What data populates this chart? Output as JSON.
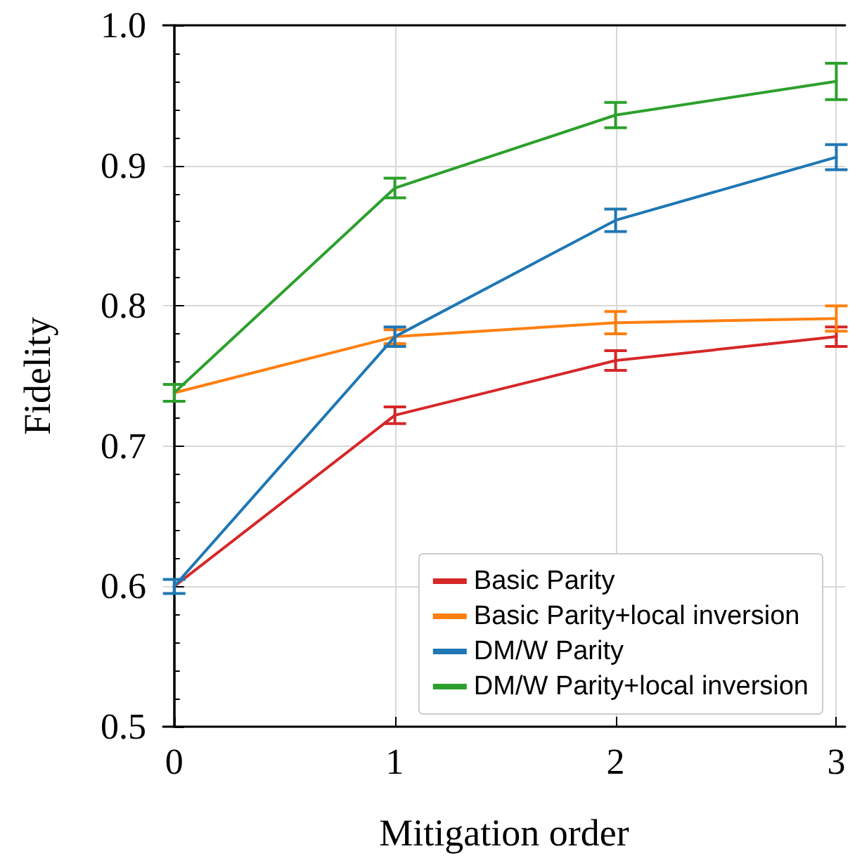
{
  "chart_data": {
    "type": "line",
    "xlabel": "Mitigation order",
    "ylabel": "Fidelity",
    "x": [
      0,
      1,
      2,
      3
    ],
    "series": [
      {
        "name": "Basic Parity",
        "color": "#d62728",
        "values": [
          0.6,
          0.722,
          0.761,
          0.778
        ],
        "errors": [
          null,
          0.006,
          0.007,
          0.007
        ]
      },
      {
        "name": "Basic Parity+local inversion",
        "color": "#ff7f0e",
        "values": [
          0.738,
          0.778,
          0.788,
          0.791
        ],
        "errors": [
          null,
          0.005,
          0.008,
          0.009
        ]
      },
      {
        "name": "DM/W Parity",
        "color": "#1f77b4",
        "values": [
          0.6,
          0.778,
          0.861,
          0.906
        ],
        "errors": [
          0.005,
          0.007,
          0.008,
          0.009
        ]
      },
      {
        "name": "DM/W Parity+local inversion",
        "color": "#2ca02c",
        "values": [
          0.738,
          0.884,
          0.936,
          0.96
        ],
        "errors": [
          0.006,
          0.007,
          0.009,
          0.013
        ]
      }
    ],
    "xlim": [
      -0.05,
      3.04
    ],
    "xticks": [
      0,
      1,
      2,
      3
    ],
    "ylim": [
      0.5,
      1.0
    ],
    "yticks": [
      {
        "value": 0.5,
        "label": "0.5"
      },
      0.6,
      0.7,
      0.8,
      0.9,
      {
        "value": 1.0,
        "label": "1.0"
      }
    ],
    "grid": true,
    "legend": "bottom right",
    "marker": "none",
    "line_style": "solid"
  }
}
